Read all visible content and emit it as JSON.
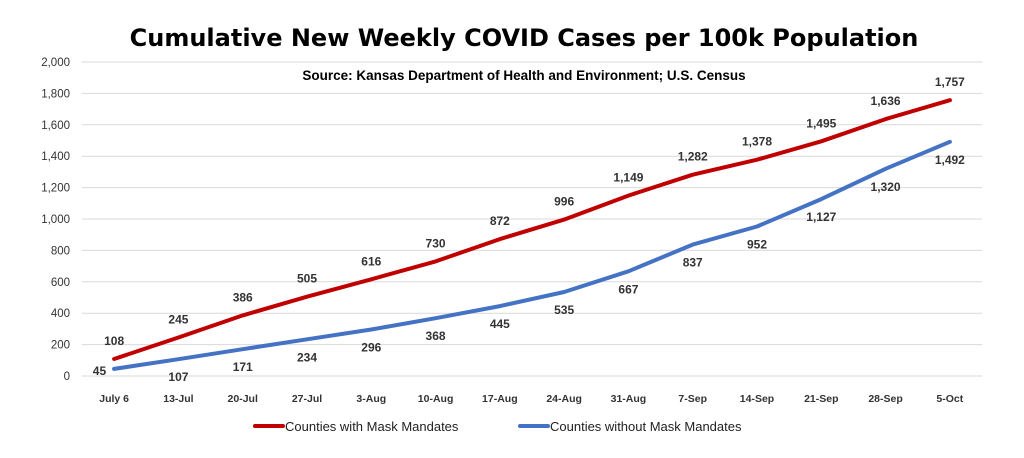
{
  "chart_data": {
    "type": "line",
    "title": "Cumulative New Weekly COVID Cases per 100k Population",
    "subtitle": "Source: Kansas Department of Health and Environment; U.S. Census",
    "xlabel": "",
    "ylabel": "",
    "ylim": [
      0,
      2000
    ],
    "yticks": [
      "0",
      "200",
      "400",
      "600",
      "800",
      "1,000",
      "1,200",
      "1,400",
      "1,600",
      "1,800",
      "2,000"
    ],
    "grid": true,
    "legend_position": "bottom",
    "categories": [
      "July 6",
      "13-Jul",
      "20-Jul",
      "27-Jul",
      "3-Aug",
      "10-Aug",
      "17-Aug",
      "24-Aug",
      "31-Aug",
      "7-Sep",
      "14-Sep",
      "21-Sep",
      "28-Sep",
      "5-Oct"
    ],
    "series": [
      {
        "name": "Counties with Mask Mandates",
        "color": "#c00000",
        "values": [
          108,
          245,
          386,
          505,
          616,
          730,
          872,
          996,
          1149,
          1282,
          1378,
          1495,
          1636,
          1757
        ],
        "labels": [
          "108",
          "245",
          "386",
          "505",
          "616",
          "730",
          "872",
          "996",
          "1,149",
          "1,282",
          "1,378",
          "1,495",
          "1,636",
          "1,757"
        ]
      },
      {
        "name": "Counties without Mask Mandates",
        "color": "#4472c4",
        "values": [
          45,
          107,
          171,
          234,
          296,
          368,
          445,
          535,
          667,
          837,
          952,
          1127,
          1320,
          1492
        ],
        "labels": [
          "45",
          "107",
          "171",
          "234",
          "296",
          "368",
          "445",
          "535",
          "667",
          "837",
          "952",
          "1,127",
          "1,320",
          "1,492"
        ]
      }
    ]
  }
}
